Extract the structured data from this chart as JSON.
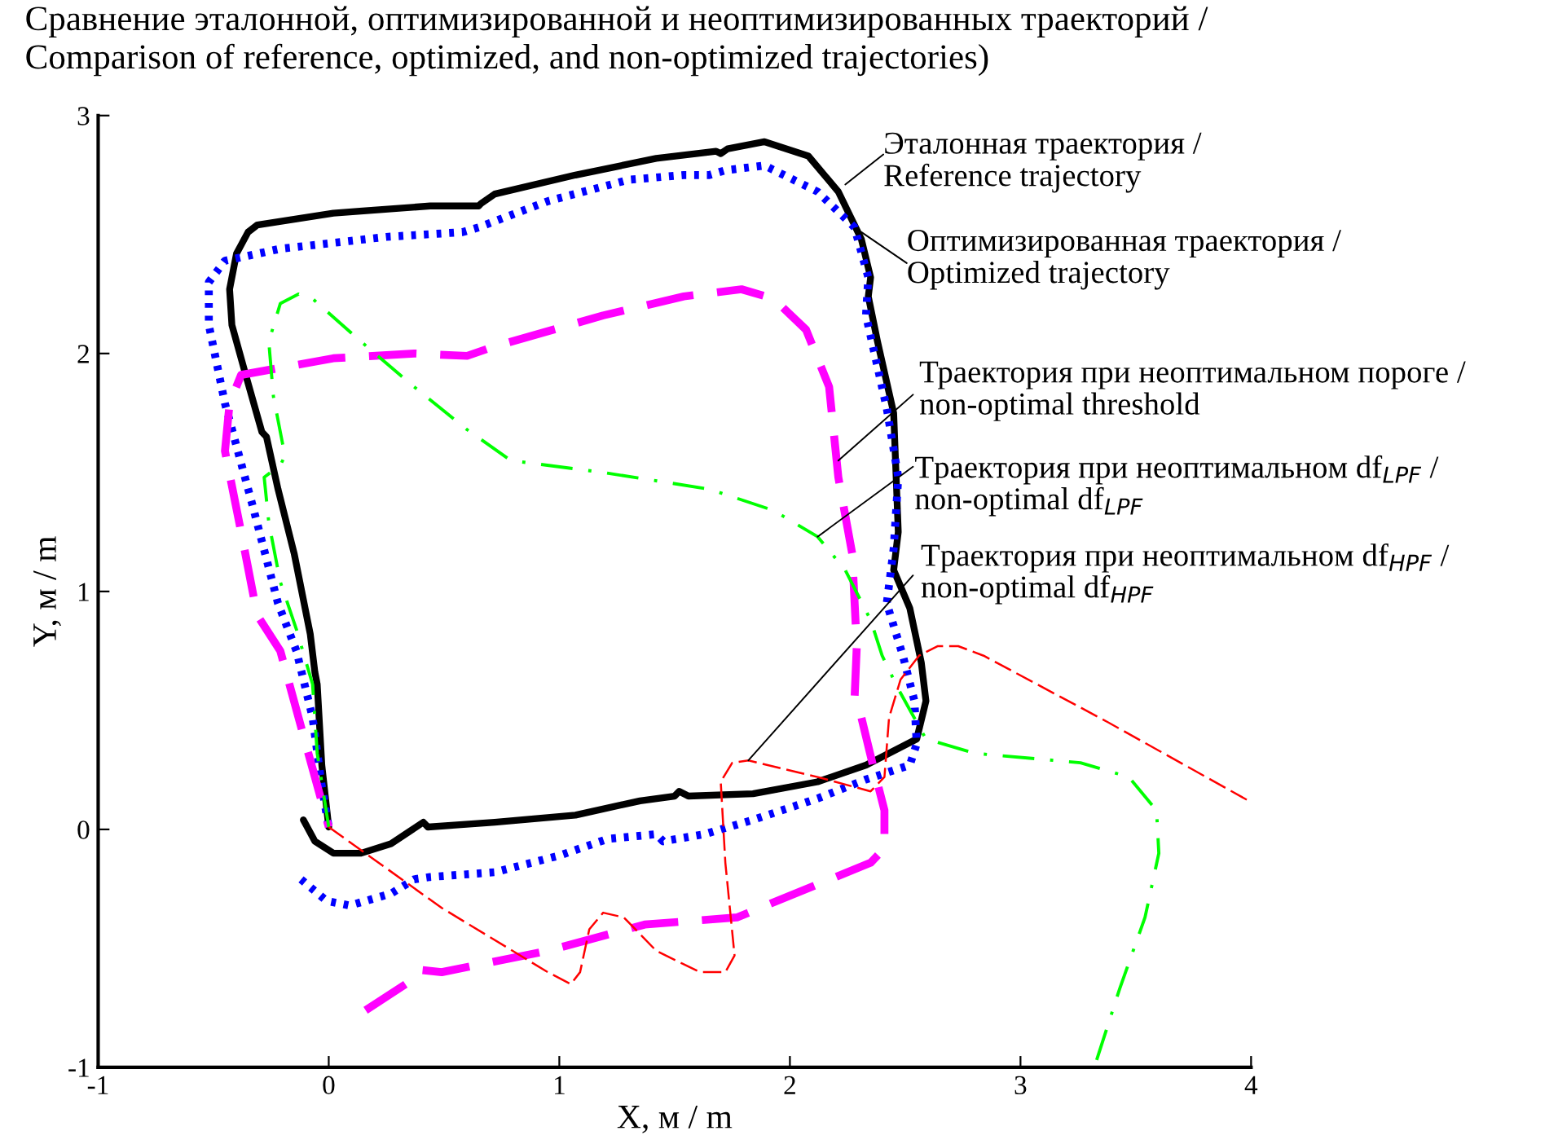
{
  "chart_data": {
    "type": "line",
    "title": "Сравнение эталонной, оптимизированной и неоптимизированных траекторий /\nComparison of reference, optimized, and non-optimized trajectories)",
    "xlabel": "X, м / m",
    "ylabel": "Y, м / m",
    "xlim": [
      -1,
      4
    ],
    "ylim": [
      -1,
      3
    ],
    "xticks": [
      -1,
      0,
      1,
      2,
      3,
      4
    ],
    "yticks": [
      -1,
      0,
      1,
      2,
      3
    ],
    "grid": false,
    "marker": "none",
    "series": [
      {
        "color": "#000000",
        "line_style": "solid",
        "x": [
          -0.11,
          -0.06,
          0.02,
          0.14,
          0.27,
          0.41,
          0.43,
          0.72,
          1.07,
          1.35,
          1.5,
          1.52,
          1.56,
          1.84,
          2.12,
          2.33,
          2.55,
          2.59,
          2.57,
          2.52,
          2.45,
          2.47,
          2.45,
          2.38,
          2.34,
          2.35,
          2.31,
          2.21,
          2.08,
          1.89,
          1.73,
          1.7,
          1.68,
          1.42,
          1.07,
          0.72,
          0.66,
          0.65,
          0.44,
          0.02,
          -0.31,
          -0.35,
          -0.4,
          -0.43,
          -0.42,
          -0.36,
          -0.29,
          -0.27,
          -0.22,
          -0.15,
          -0.08,
          -0.06,
          -0.05,
          -0.03,
          0.0
        ],
        "values": [
          0.04,
          -0.05,
          -0.1,
          -0.1,
          -0.06,
          0.03,
          0.01,
          0.03,
          0.06,
          0.12,
          0.14,
          0.16,
          0.14,
          0.15,
          0.2,
          0.27,
          0.38,
          0.54,
          0.7,
          0.93,
          1.09,
          1.25,
          1.75,
          2.05,
          2.24,
          2.32,
          2.48,
          2.68,
          2.83,
          2.89,
          2.86,
          2.84,
          2.85,
          2.82,
          2.75,
          2.67,
          2.63,
          2.62,
          2.62,
          2.59,
          2.54,
          2.51,
          2.42,
          2.27,
          2.12,
          1.91,
          1.67,
          1.65,
          1.43,
          1.16,
          0.82,
          0.66,
          0.61,
          0.27,
          0.01
        ]
      },
      {
        "color": "#0000ff",
        "line_style": "dotted",
        "x": [
          -0.12,
          -0.01,
          0.09,
          0.27,
          0.37,
          0.44,
          0.72,
          1.0,
          1.21,
          1.42,
          1.45,
          1.63,
          1.84,
          2.12,
          2.33,
          2.52,
          2.55,
          2.54,
          2.49,
          2.42,
          2.45,
          2.47,
          2.42,
          2.33,
          2.34,
          2.28,
          2.12,
          1.89,
          1.72,
          1.65,
          1.54,
          1.3,
          0.95,
          0.65,
          0.58,
          0.25,
          -0.21,
          -0.45,
          -0.52,
          -0.52,
          -0.45,
          -0.33,
          -0.22,
          -0.14,
          -0.07,
          -0.03,
          0.0
        ],
        "values": [
          -0.21,
          -0.3,
          -0.32,
          -0.27,
          -0.21,
          -0.2,
          -0.18,
          -0.11,
          -0.04,
          -0.02,
          -0.05,
          -0.02,
          0.04,
          0.13,
          0.21,
          0.27,
          0.36,
          0.54,
          0.73,
          0.95,
          1.18,
          1.48,
          1.77,
          2.16,
          2.32,
          2.53,
          2.68,
          2.79,
          2.77,
          2.75,
          2.75,
          2.73,
          2.64,
          2.53,
          2.51,
          2.49,
          2.44,
          2.39,
          2.3,
          2.12,
          1.79,
          1.36,
          0.95,
          0.75,
          0.47,
          0.18,
          0.01
        ]
      },
      {
        "color": "#ff00ff",
        "line_style": "dashed",
        "x": [
          0.16,
          0.35,
          0.39,
          0.49,
          0.95,
          1.37,
          1.77,
          2.35,
          2.41,
          2.41,
          2.36,
          2.31,
          2.28,
          2.29,
          2.27,
          2.21,
          2.17,
          2.07,
          1.93,
          1.79,
          1.54,
          1.19,
          0.72,
          0.6,
          0.37,
          0.02,
          -0.38,
          -0.43,
          -0.45,
          -0.38,
          -0.31,
          -0.21,
          -0.1,
          0.0
        ],
        "values": [
          -0.76,
          -0.64,
          -0.59,
          -0.6,
          -0.51,
          -0.4,
          -0.37,
          -0.14,
          -0.08,
          0.08,
          0.27,
          0.47,
          0.54,
          0.77,
          1.16,
          1.48,
          1.86,
          2.1,
          2.23,
          2.27,
          2.24,
          2.16,
          2.03,
          1.99,
          2.0,
          1.98,
          1.91,
          1.79,
          1.59,
          1.25,
          0.9,
          0.75,
          0.36,
          0.01
        ]
      },
      {
        "color": "#00ff00",
        "line_style": "dashdot",
        "x": [
          0.0,
          -0.05,
          -0.07,
          -0.14,
          -0.21,
          -0.26,
          -0.28,
          -0.21,
          -0.19,
          -0.24,
          -0.26,
          -0.21,
          -0.13,
          -0.07,
          0.14,
          0.37,
          0.6,
          0.79,
          1.19,
          1.65,
          1.93,
          2.12,
          2.24,
          2.35,
          2.4,
          2.47,
          2.59,
          2.8,
          3.26,
          3.47,
          3.59,
          3.6,
          3.54,
          3.43,
          3.32
        ],
        "values": [
          0.01,
          0.32,
          0.61,
          0.84,
          1.04,
          1.29,
          1.48,
          1.53,
          1.57,
          1.82,
          2.05,
          2.21,
          2.25,
          2.23,
          2.05,
          1.86,
          1.68,
          1.55,
          1.5,
          1.43,
          1.34,
          1.23,
          1.09,
          0.88,
          0.73,
          0.59,
          0.38,
          0.32,
          0.28,
          0.22,
          0.08,
          -0.1,
          -0.37,
          -0.67,
          -1.0
        ]
      },
      {
        "color": "#ff0000",
        "line_style": "dashed",
        "x": [
          0.0,
          0.49,
          0.95,
          1.05,
          1.09,
          1.13,
          1.19,
          1.28,
          1.42,
          1.61,
          1.72,
          1.76,
          1.72,
          1.7,
          1.75,
          1.82,
          2.12,
          2.35,
          2.41,
          2.43,
          2.48,
          2.56,
          2.64,
          2.73,
          2.84,
          3.38,
          3.99
        ],
        "values": [
          0.01,
          -0.33,
          -0.6,
          -0.65,
          -0.6,
          -0.42,
          -0.35,
          -0.37,
          -0.51,
          -0.6,
          -0.6,
          -0.53,
          -0.14,
          0.2,
          0.28,
          0.29,
          0.22,
          0.16,
          0.22,
          0.47,
          0.63,
          0.73,
          0.77,
          0.77,
          0.73,
          0.45,
          0.12
        ]
      }
    ],
    "annotations": [
      {
        "text": "Эталонная траектория /\nReference trajectory",
        "x": 2.24,
        "y": 2.71
      },
      {
        "text": "Оптимизированная траектория /\nOptimized trajectory",
        "x": 2.31,
        "y": 2.51
      },
      {
        "text": "Траектория при неоптимальном пороге /\nnon-optimal threshold",
        "x": 2.21,
        "y": 1.55
      },
      "Траектория при неоптимальном df$_{LPF}$ /\nnon-optimal df$_{LPF}$",
      "Траектория при неоптимальном df$_{HPF}$ /\nnon-optimal df$_{HPF}$"
    ]
  }
}
